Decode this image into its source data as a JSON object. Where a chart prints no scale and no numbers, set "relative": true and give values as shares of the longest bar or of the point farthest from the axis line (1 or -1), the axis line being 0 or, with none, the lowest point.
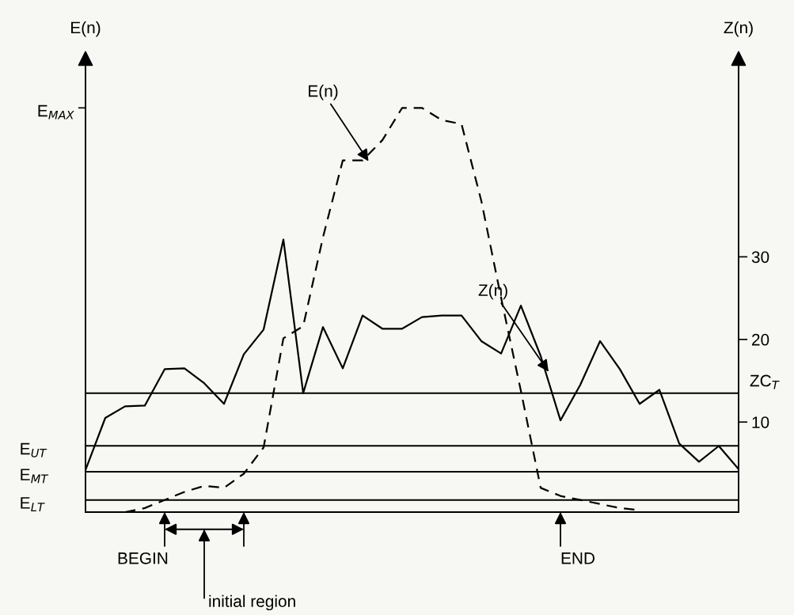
{
  "chart_data": [
    {
      "type": "line",
      "ylabel": "E(n)",
      "relative": true,
      "categories": [
        null,
        null,
        null,
        null,
        null,
        null,
        null,
        null,
        null,
        null,
        null,
        null,
        null,
        null,
        null,
        null,
        null,
        null,
        null,
        null,
        null,
        null,
        null,
        null,
        null,
        null,
        null,
        null,
        null,
        null,
        null,
        null,
        null,
        null
      ],
      "series": [
        {
          "name": "E(n)",
          "color": "#000000",
          "line_style": "dashed",
          "values": [
            null,
            null,
            0.0,
            0.01,
            0.03,
            0.05,
            0.065,
            0.06,
            0.095,
            0.16,
            0.43,
            0.46,
            0.68,
            0.87,
            0.87,
            0.92,
            1.0,
            1.0,
            0.97,
            0.96,
            0.77,
            0.53,
            0.3,
            0.06,
            0.04,
            0.03,
            0.02,
            0.01,
            0.005,
            null,
            null,
            null,
            null,
            null
          ]
        }
      ],
      "ref_lines": [
        {
          "axis": "y",
          "value": 0.164,
          "label": "E$_{UT}$",
          "color": "#000000"
        },
        {
          "axis": "y",
          "value": 0.1,
          "label": "E$_{MT}$",
          "color": "#000000"
        },
        {
          "axis": "y",
          "value": 0.03,
          "label": "E$_{LT}$",
          "color": "#000000"
        }
      ],
      "annotations": [
        "E$_{MAX}$",
        "BEGIN",
        "initial region",
        "END"
      ],
      "grid": false,
      "legend": false,
      "marker": "none"
    },
    {
      "type": "line",
      "ylabel": "Z(n)",
      "categories": [
        null,
        null,
        null,
        null,
        null,
        null,
        null,
        null,
        null,
        null,
        null,
        null,
        null,
        null,
        null,
        null,
        null,
        null,
        null,
        null,
        null,
        null,
        null,
        null,
        null,
        null,
        null,
        null,
        null,
        null,
        null,
        null,
        null,
        null
      ],
      "series": [
        {
          "name": "Z(n)",
          "color": "#000000",
          "line_style": "solid",
          "values": [
            4.2,
            10.5,
            11.9,
            12.0,
            16.4,
            16.5,
            14.7,
            12.2,
            18.2,
            21.2,
            32.1,
            13.5,
            21.5,
            16.5,
            22.9,
            21.3,
            21.3,
            22.7,
            22.9,
            22.9,
            19.8,
            18.3,
            24.1,
            18.0,
            10.2,
            14.5,
            19.8,
            16.4,
            12.2,
            13.9,
            7.4,
            5.2,
            7.1,
            4.3
          ]
        }
      ],
      "ylim": [
        -0.9,
        53.9
      ],
      "yticks": [
        10,
        20,
        30
      ],
      "ref_lines": [
        {
          "axis": "y",
          "value": 13.5,
          "label": "ZC$_{T}$",
          "color": "#000000"
        }
      ],
      "grid": false,
      "legend": false,
      "marker": "none"
    }
  ]
}
